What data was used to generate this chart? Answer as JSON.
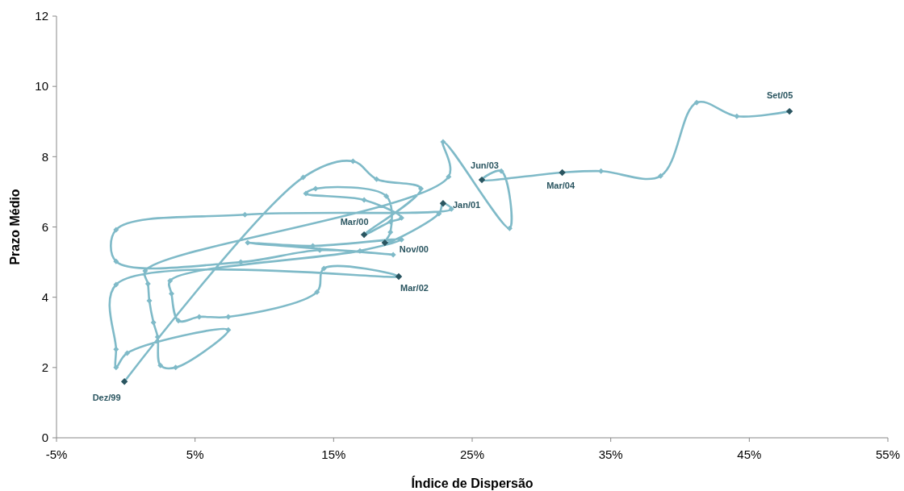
{
  "chart_data": {
    "type": "line",
    "xlabel": "Índice de Dispersão",
    "ylabel": "Prazo Médio",
    "xlim": [
      -5,
      55
    ],
    "xticks": [
      {
        "value": -5,
        "label": "-5%"
      },
      {
        "value": 5,
        "label": "5%"
      },
      {
        "value": 15,
        "label": "15%"
      },
      {
        "value": 25,
        "label": "25%"
      },
      {
        "value": 35,
        "label": "35%"
      },
      {
        "value": 45,
        "label": "45%"
      },
      {
        "value": 55,
        "label": "55%"
      }
    ],
    "ylim": [
      0,
      12
    ],
    "yticks": [
      0,
      2,
      4,
      6,
      8,
      10,
      12
    ],
    "grid": false,
    "marker": "diamond",
    "line_style": "solid",
    "series": [
      {
        "color": "#7fbac8",
        "x": [
          -0.1,
          12.8,
          16.4,
          18.1,
          21.3,
          17.2,
          19.1,
          19.9,
          17.2,
          13.0,
          13.7,
          18.8,
          19.1,
          18.7,
          22.6,
          22.9,
          23.5,
          8.6,
          -0.7,
          -0.7,
          8.3,
          14.0,
          19.3,
          8.8,
          13.5,
          19.9,
          16.9,
          3.2,
          3.3,
          3.8,
          5.3,
          7.4,
          13.8,
          14.3,
          19.7,
          -0.7,
          -0.7,
          -0.7,
          0.1,
          7.4,
          3.6,
          2.5,
          2.3,
          2.0,
          1.7,
          1.6,
          1.4,
          23.3,
          22.9,
          27.7,
          27.1,
          25.7,
          31.5,
          34.3,
          38.6,
          41.2,
          44.1,
          47.9
        ],
        "values": [
          1.6,
          7.41,
          7.87,
          7.36,
          7.09,
          5.78,
          6.15,
          6.26,
          6.77,
          6.95,
          7.09,
          6.88,
          5.85,
          5.55,
          6.38,
          6.67,
          6.51,
          6.35,
          5.92,
          5.02,
          5.0,
          5.34,
          5.21,
          5.55,
          5.46,
          5.64,
          5.32,
          4.47,
          4.1,
          3.33,
          3.44,
          3.44,
          4.15,
          4.82,
          4.59,
          4.36,
          2.52,
          2.0,
          2.41,
          3.07,
          2.0,
          2.06,
          2.87,
          3.28,
          3.9,
          4.38,
          4.75,
          7.43,
          8.42,
          5.96,
          7.59,
          7.34,
          7.55,
          7.59,
          7.45,
          9.54,
          9.15,
          9.29
        ]
      }
    ],
    "annotations": [
      {
        "text": "Dez/99",
        "x": -0.1,
        "y": 1.6
      },
      {
        "text": "Mar/00",
        "x": 17.2,
        "y": 5.78
      },
      {
        "text": "Nov/00",
        "x": 18.7,
        "y": 5.55
      },
      {
        "text": "Jan/01",
        "x": 22.9,
        "y": 6.67
      },
      {
        "text": "Mar/02",
        "x": 19.7,
        "y": 4.59
      },
      {
        "text": "Jun/03",
        "x": 25.7,
        "y": 7.34
      },
      {
        "text": "Mar/04",
        "x": 31.5,
        "y": 7.55
      },
      {
        "text": "Set/05",
        "x": 47.9,
        "y": 9.29
      }
    ]
  }
}
